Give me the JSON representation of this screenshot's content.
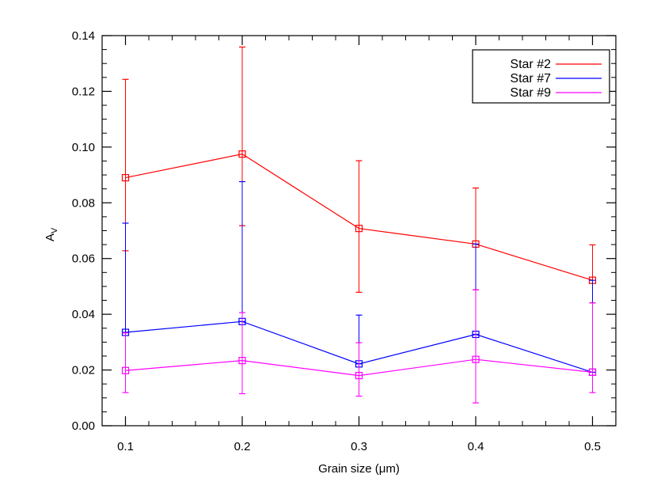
{
  "chart_data": {
    "type": "line",
    "title": "",
    "xlabel": "Grain size (μm)",
    "ylabel": "A",
    "ylabel_subscript": "V",
    "xlim": [
      0.08,
      0.52
    ],
    "ylim": [
      0.0,
      0.14
    ],
    "xticks": [
      0.1,
      0.2,
      0.3,
      0.4,
      0.5
    ],
    "xtick_labels": [
      "0.1",
      "0.2",
      "0.3",
      "0.4",
      "0.5"
    ],
    "yticks": [
      0.0,
      0.02,
      0.04,
      0.06,
      0.08,
      0.1,
      0.12,
      0.14
    ],
    "ytick_labels": [
      "0.00",
      "0.02",
      "0.04",
      "0.06",
      "0.08",
      "0.10",
      "0.12",
      "0.14"
    ],
    "grid": false,
    "legend_position": "top-right",
    "marker": "square",
    "x": [
      0.1,
      0.2,
      0.3,
      0.4,
      0.5
    ],
    "series": [
      {
        "name": "Star #2",
        "color": "#ff0000",
        "values": [
          0.089,
          0.0975,
          0.0708,
          0.0652,
          0.0522
        ],
        "err_upper": [
          0.1243,
          0.1359,
          0.0951,
          0.0853,
          0.0649
        ],
        "err_lower": [
          0.0628,
          0.0718,
          0.0479,
          0.0488,
          0.0441
        ]
      },
      {
        "name": "Star #7",
        "color": "#0000ff",
        "values": [
          0.0335,
          0.0374,
          0.0222,
          0.0328,
          0.0192
        ],
        "err_upper": [
          0.0727,
          0.0876,
          0.0397,
          0.0652,
          0.0522
        ],
        "err_lower": [
          0.0335,
          0.0374,
          0.0222,
          0.0328,
          0.0192
        ]
      },
      {
        "name": "Star #9",
        "color": "#ff00ff",
        "values": [
          0.0198,
          0.0234,
          0.018,
          0.0238,
          0.0192
        ],
        "err_upper": [
          0.0333,
          0.0406,
          0.0298,
          0.0488,
          0.0441
        ],
        "err_lower": [
          0.0119,
          0.0115,
          0.0106,
          0.0082,
          0.0119
        ]
      }
    ]
  }
}
